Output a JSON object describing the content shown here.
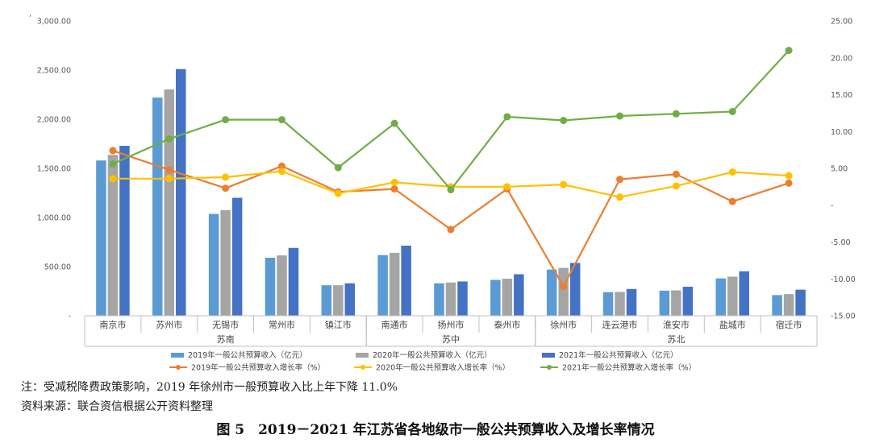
{
  "chart_data": {
    "type": "bar",
    "title": "",
    "categories": [
      "南京市",
      "苏州市",
      "无锡市",
      "常州市",
      "镇江市",
      "南通市",
      "扬州市",
      "泰州市",
      "徐州市",
      "连云港市",
      "淮安市",
      "盐城市",
      "宿迁市"
    ],
    "groups": [
      {
        "label": "苏南",
        "from": 0,
        "to": 4
      },
      {
        "label": "苏中",
        "from": 5,
        "to": 7
      },
      {
        "label": "苏北",
        "from": 8,
        "to": 12
      }
    ],
    "left_axis": {
      "ylim": [
        0,
        3000
      ],
      "ticks": [
        0,
        500,
        1000,
        1500,
        2000,
        2500,
        3000
      ],
      "tick_labels": [
        "-",
        "500.00",
        "1,000.00",
        "1,500.00",
        "2,000.00",
        "2,500.00",
        "3,000.00"
      ]
    },
    "right_axis": {
      "ylim": [
        -15,
        25
      ],
      "ticks": [
        -15,
        -10,
        -5,
        0,
        5,
        10,
        15,
        20,
        25
      ],
      "tick_labels": [
        "-15.00",
        "-10.00",
        "-5.00",
        "-",
        "5.00",
        "10.00",
        "15.00",
        "20.00",
        "25.00"
      ]
    },
    "bar_series": [
      {
        "name": "2019年一般公共预算收入（亿元）",
        "color": "#5B9BD5",
        "values": [
          1580,
          2220,
          1036,
          590,
          310,
          617,
          330,
          365,
          470,
          240,
          255,
          380,
          210
        ]
      },
      {
        "name": "2020年一般公共预算收入（亿元）",
        "color": "#A5A5A5",
        "values": [
          1637,
          2303,
          1075,
          614,
          310,
          640,
          338,
          377,
          487,
          242,
          258,
          398,
          220
        ]
      },
      {
        "name": "2021年一般公共预算收入（亿元）",
        "color": "#4472C4",
        "values": [
          1729,
          2510,
          1200,
          690,
          330,
          713,
          349,
          422,
          537,
          272,
          295,
          452,
          265
        ]
      }
    ],
    "line_series": [
      {
        "name": "2019年一般公共预算收入增长率（%）",
        "color": "#ED7D31",
        "values": [
          7.4,
          4.8,
          2.3,
          5.3,
          1.8,
          2.2,
          -3.3,
          2.2,
          -11.0,
          3.5,
          4.2,
          0.5,
          3.0
        ]
      },
      {
        "name": "2020年一般公共预算收入增长率（%）",
        "color": "#FFC000",
        "values": [
          3.6,
          3.6,
          3.8,
          4.6,
          1.6,
          3.1,
          2.5,
          2.5,
          2.8,
          1.1,
          2.6,
          4.5,
          4.0
        ]
      },
      {
        "name": "2021年一般公共预算收入增长率（%）",
        "color": "#70AD47",
        "values": [
          5.6,
          9.0,
          11.6,
          11.6,
          5.1,
          11.1,
          2.1,
          12.0,
          11.5,
          12.1,
          12.4,
          12.7,
          21.0
        ]
      }
    ],
    "legend_position": "bottom",
    "grid": false
  },
  "left_axis_stray": ",",
  "note": "注：受减税降费政策影响，2019 年徐州市一般预算收入比上年下降 11.0%",
  "source": "资料来源：联合资信根据公开资料整理",
  "figure_title": "图 5　2019－2021 年江苏省各地级市一般公共预算收入及增长率情况"
}
